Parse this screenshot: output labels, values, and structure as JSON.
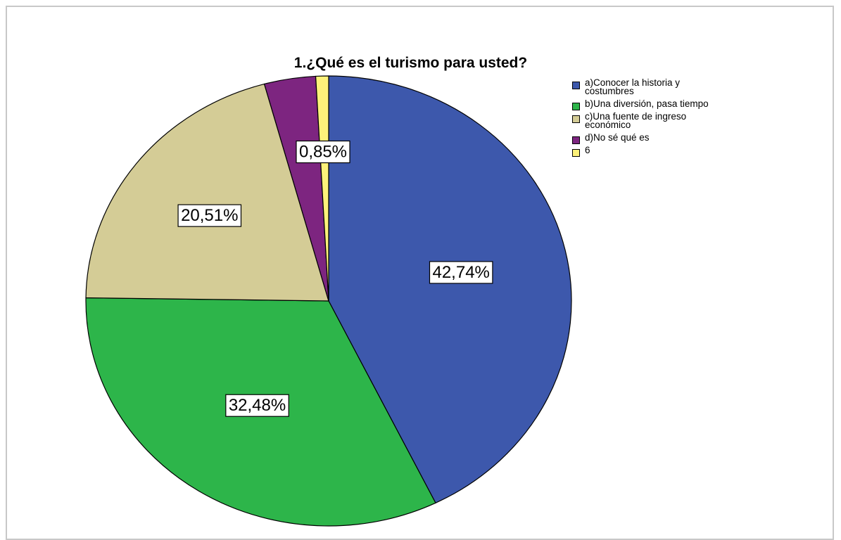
{
  "chart_data": {
    "type": "pie",
    "title": "1.¿Qué es el turismo para usted?",
    "slices": [
      {
        "label": "a)Conocer la historia y costumbres",
        "value": 42.74,
        "value_label": "42,74%",
        "color": "#3d58ac"
      },
      {
        "label": "b)Una diversión, pasa tiempo",
        "value": 32.48,
        "value_label": "32,48%",
        "color": "#2db54a"
      },
      {
        "label": "c)Una fuente de ingreso económico",
        "value": 20.51,
        "value_label": "20,51%",
        "color": "#d4cc96"
      },
      {
        "label": "d)No sé  qué es",
        "value": 3.42,
        "value_label": "",
        "color": "#7d2580"
      },
      {
        "label": "6",
        "value": 0.85,
        "value_label": "0,85%",
        "color": "#fdf27a"
      }
    ],
    "legend_position": "top-right"
  }
}
